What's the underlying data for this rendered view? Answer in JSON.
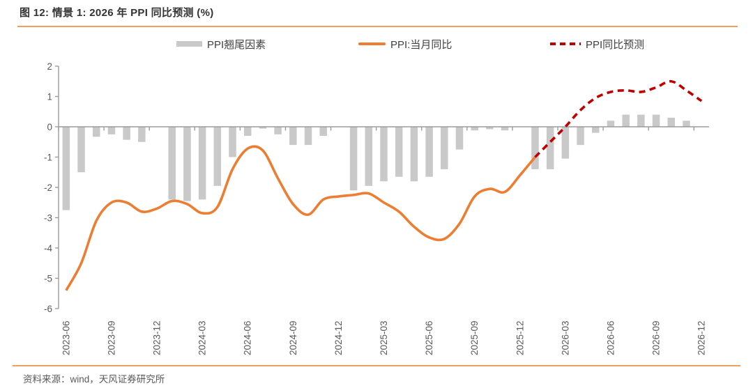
{
  "header": {
    "title": "图 12: 情景 1: 2026 年 PPI 同比预测 (%)"
  },
  "legend": [
    {
      "label": "PPI翘尾因素",
      "type": "bar",
      "color": "#C9C9C9"
    },
    {
      "label": "PPI:当月同比",
      "type": "line",
      "color": "#ED7D31"
    },
    {
      "label": "PPI同比预测",
      "type": "dashed-line",
      "color": "#C00000"
    }
  ],
  "footer": {
    "source": "资料来源：wind，天风证券研究所"
  },
  "colors": {
    "accent_rule": "#EFA05A",
    "axis": "#9B9B9B",
    "tick_label": "#595959"
  },
  "chart_data": {
    "type": "bar",
    "title": "情景 1: 2026 年 PPI 同比预测 (%)",
    "xlabel": "",
    "ylabel": "",
    "ylim": [
      -6,
      2
    ],
    "y_ticks": [
      2,
      1,
      0,
      -1,
      -2,
      -3,
      -4,
      -5,
      -6
    ],
    "grid": false,
    "legend_position": "top",
    "categories": [
      "2023-06",
      "2023-07",
      "2023-08",
      "2023-09",
      "2023-10",
      "2023-11",
      "2023-12",
      "2024-01",
      "2024-02",
      "2024-03",
      "2024-04",
      "2024-05",
      "2024-06",
      "2024-07",
      "2024-08",
      "2024-09",
      "2024-10",
      "2024-11",
      "2024-12",
      "2025-01",
      "2025-02",
      "2025-03",
      "2025-04",
      "2025-05",
      "2025-06",
      "2025-07",
      "2025-08",
      "2025-09",
      "2025-10",
      "2025-11",
      "2025-12",
      "2026-01",
      "2026-02",
      "2026-03",
      "2026-04",
      "2026-05",
      "2026-06",
      "2026-07",
      "2026-08",
      "2026-09",
      "2026-10",
      "2026-11",
      "2026-12"
    ],
    "x_tick_labels": [
      "2023-06",
      "2023-09",
      "2023-12",
      "2024-03",
      "2024-06",
      "2024-09",
      "2024-12",
      "2025-03",
      "2025-06",
      "2025-09",
      "2025-12",
      "2026-03",
      "2026-06",
      "2026-09",
      "2026-12"
    ],
    "series": [
      {
        "name": "PPI翘尾因素",
        "type": "bar",
        "color": "#C9C9C9",
        "values": [
          -2.75,
          -1.5,
          -0.33,
          -0.25,
          -0.43,
          -0.5,
          0,
          -2.4,
          -2.45,
          -2.4,
          -1.95,
          -1.0,
          -0.3,
          -0.06,
          -0.25,
          -0.6,
          -0.6,
          -0.3,
          0,
          -2.1,
          -1.95,
          -1.8,
          -1.65,
          -1.8,
          -1.65,
          -1.4,
          -0.75,
          -0.12,
          -0.08,
          -0.12,
          0,
          -1.4,
          -1.4,
          -1.05,
          -0.6,
          -0.2,
          0.2,
          0.4,
          0.4,
          0.4,
          0.3,
          0.2,
          0
        ]
      },
      {
        "name": "PPI:当月同比",
        "type": "line",
        "color": "#ED7D31",
        "values": [
          -5.4,
          -4.5,
          -3.1,
          -2.5,
          -2.5,
          -2.8,
          -2.7,
          -2.45,
          -2.55,
          -2.85,
          -2.65,
          -1.4,
          -0.72,
          -0.78,
          -1.7,
          -2.55,
          -2.9,
          -2.4,
          -2.3,
          -2.25,
          -2.2,
          -2.5,
          -2.8,
          -3.3,
          -3.65,
          -3.7,
          -3.2,
          -2.3,
          -2.05,
          -2.15,
          -1.6,
          -1.0,
          null,
          null,
          null,
          null,
          null,
          null,
          null,
          null,
          null,
          null,
          null
        ]
      },
      {
        "name": "PPI同比预测",
        "type": "dashed-line",
        "color": "#C00000",
        "values": [
          null,
          null,
          null,
          null,
          null,
          null,
          null,
          null,
          null,
          null,
          null,
          null,
          null,
          null,
          null,
          null,
          null,
          null,
          null,
          null,
          null,
          null,
          null,
          null,
          null,
          null,
          null,
          null,
          null,
          null,
          null,
          -1.0,
          -0.5,
          0.0,
          0.55,
          0.95,
          1.15,
          1.2,
          1.15,
          1.3,
          1.5,
          1.2,
          0.85
        ]
      }
    ]
  }
}
